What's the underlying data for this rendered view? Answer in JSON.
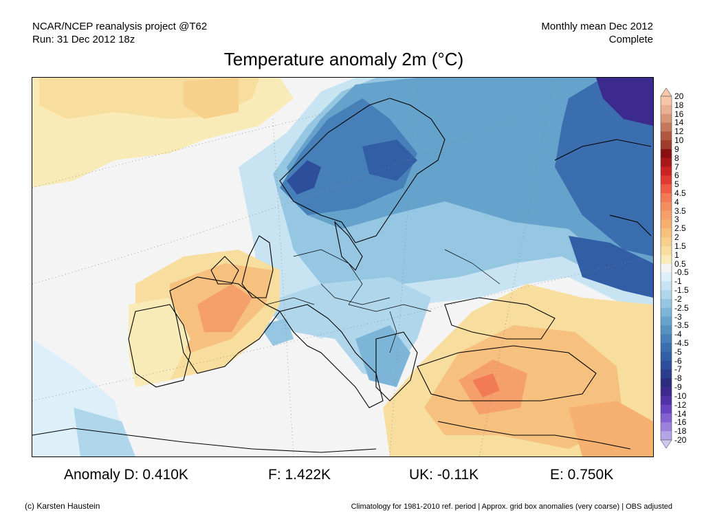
{
  "header": {
    "project": "NCAR/NCEP reanalysis project @T62",
    "run": "Run: 31 Dec 2012 18z",
    "period": "Monthly mean Dec 2012",
    "status": "Complete"
  },
  "title": "Temperature anomaly 2m (°C)",
  "colorbar": {
    "labels": [
      "20",
      "18",
      "16",
      "14",
      "12",
      "10",
      "9",
      "8",
      "7",
      "6",
      "5",
      "4.5",
      "4",
      "3.5",
      "3",
      "2.5",
      "2",
      "1.5",
      "1",
      "0.5",
      "-0.5",
      "-1",
      "-1.5",
      "-2",
      "-2.5",
      "-3",
      "-3.5",
      "-4",
      "-4.5",
      "-5",
      "-6",
      "-7",
      "-8",
      "-9",
      "-10",
      "-12",
      "-14",
      "-16",
      "-18",
      "-20"
    ],
    "colors": [
      "#f5c6a8",
      "#eab092",
      "#d79678",
      "#c4775d",
      "#b2573f",
      "#a03a2a",
      "#8a0f12",
      "#a81818",
      "#c82424",
      "#e03a32",
      "#ef5a44",
      "#f27a55",
      "#f48e60",
      "#f5a06a",
      "#f6b070",
      "#f6c07e",
      "#f7d08c",
      "#f8de9e",
      "#f9ebb8",
      "#f4f4f4",
      "#ddeff8",
      "#c8e4f2",
      "#b0d6eb",
      "#95c6e2",
      "#7db5d8",
      "#66a3cc",
      "#5592c2",
      "#4780b8",
      "#3b6eae",
      "#315ea5",
      "#2d4e9a",
      "#2b3e8c",
      "#2a2d7c",
      "#3c2a8e",
      "#5230a8",
      "#6a44c0",
      "#8460d0",
      "#9c80dc",
      "#b6a4e8",
      "#d0c8f2"
    ]
  },
  "stats": {
    "d": "Anomaly D: 0.410K",
    "f": "F: 1.422K",
    "uk": "UK: -0.11K",
    "e": "E: 0.750K"
  },
  "footer": {
    "credit": "(c) Karsten Haustein",
    "note": "Climatology for 1981-2010 ref. period | Approx. grid box anomalies (very coarse) | OBS adjusted"
  }
}
